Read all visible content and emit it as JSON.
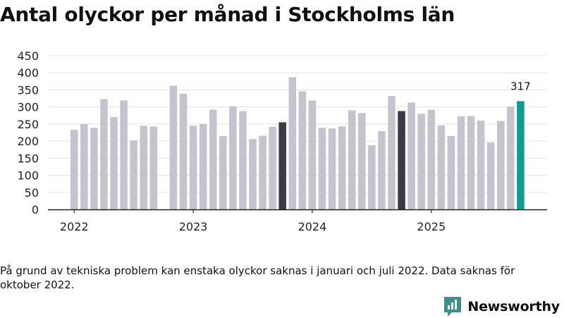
{
  "title": "Antal olyckor per månad i Stockholms län",
  "footnote": "På grund av tekniska problem kan enstaka olyckor saknas i januari och juli 2022. Data saknas för oktober 2022.",
  "brand": {
    "name": "Newsworthy",
    "icon": "newsworthy-logo-icon",
    "color": "#3d8f8a"
  },
  "colors": {
    "bar": "#c5c3ce",
    "october_highlight": "#3b3a47",
    "latest": "#0a9e91",
    "grid": "#e3e3e3",
    "axis": "#222222"
  },
  "chart_data": {
    "type": "bar",
    "title": "Antal olyckor per månad i Stockholms län",
    "xlabel": "",
    "ylabel": "",
    "ylim": [
      0,
      450
    ],
    "yticks": [
      0,
      50,
      100,
      150,
      200,
      250,
      300,
      350,
      400,
      450
    ],
    "xtick_labels": [
      "2022",
      "2023",
      "2024",
      "2025"
    ],
    "grid": true,
    "series": [
      {
        "name": "Antal olyckor",
        "values": [
          {
            "month": "2022-01",
            "value": 233
          },
          {
            "month": "2022-02",
            "value": 250
          },
          {
            "month": "2022-03",
            "value": 239
          },
          {
            "month": "2022-04",
            "value": 323
          },
          {
            "month": "2022-05",
            "value": 270
          },
          {
            "month": "2022-06",
            "value": 319
          },
          {
            "month": "2022-07",
            "value": 202
          },
          {
            "month": "2022-08",
            "value": 245
          },
          {
            "month": "2022-09",
            "value": 243
          },
          {
            "month": "2022-10",
            "value": null
          },
          {
            "month": "2022-11",
            "value": 362
          },
          {
            "month": "2022-12",
            "value": 339
          },
          {
            "month": "2023-01",
            "value": 245
          },
          {
            "month": "2023-02",
            "value": 250
          },
          {
            "month": "2023-03",
            "value": 292
          },
          {
            "month": "2023-04",
            "value": 215
          },
          {
            "month": "2023-05",
            "value": 302
          },
          {
            "month": "2023-06",
            "value": 288
          },
          {
            "month": "2023-07",
            "value": 206
          },
          {
            "month": "2023-08",
            "value": 216
          },
          {
            "month": "2023-09",
            "value": 242
          },
          {
            "month": "2023-10",
            "value": 255,
            "highlight": "october"
          },
          {
            "month": "2023-11",
            "value": 387
          },
          {
            "month": "2023-12",
            "value": 346
          },
          {
            "month": "2024-01",
            "value": 319
          },
          {
            "month": "2024-02",
            "value": 239
          },
          {
            "month": "2024-03",
            "value": 237
          },
          {
            "month": "2024-04",
            "value": 243
          },
          {
            "month": "2024-05",
            "value": 290
          },
          {
            "month": "2024-06",
            "value": 282
          },
          {
            "month": "2024-07",
            "value": 188
          },
          {
            "month": "2024-08",
            "value": 229
          },
          {
            "month": "2024-09",
            "value": 332
          },
          {
            "month": "2024-10",
            "value": 288,
            "highlight": "october"
          },
          {
            "month": "2024-11",
            "value": 313
          },
          {
            "month": "2024-12",
            "value": 280
          },
          {
            "month": "2025-01",
            "value": 292
          },
          {
            "month": "2025-02",
            "value": 246
          },
          {
            "month": "2025-03",
            "value": 215
          },
          {
            "month": "2025-04",
            "value": 273
          },
          {
            "month": "2025-05",
            "value": 273
          },
          {
            "month": "2025-06",
            "value": 260
          },
          {
            "month": "2025-07",
            "value": 196
          },
          {
            "month": "2025-08",
            "value": 259
          },
          {
            "month": "2025-09",
            "value": 301
          },
          {
            "month": "2025-10",
            "value": 317,
            "highlight": "latest",
            "label": "317"
          }
        ]
      }
    ]
  }
}
